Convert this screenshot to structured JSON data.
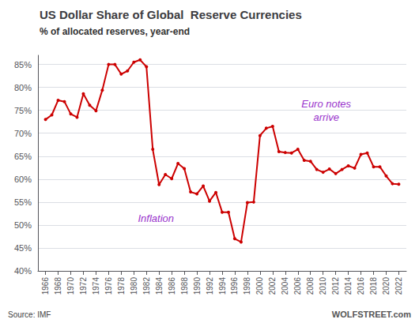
{
  "chart_data": {
    "type": "line",
    "title": "US Dollar Share of Global  Reserve Currencies",
    "subtitle": "% of allocated reserves, year-end",
    "source": "Source: IMF",
    "watermark": "WOLFSTREET.com",
    "color": "#CC0000",
    "marker": "circle",
    "grid": true,
    "x": [
      1966,
      1967,
      1968,
      1969,
      1970,
      1971,
      1972,
      1973,
      1974,
      1975,
      1976,
      1977,
      1978,
      1979,
      1980,
      1981,
      1982,
      1983,
      1984,
      1985,
      1986,
      1987,
      1988,
      1989,
      1990,
      1991,
      1992,
      1993,
      1994,
      1995,
      1996,
      1997,
      1998,
      1999,
      2000,
      2001,
      2002,
      2003,
      2004,
      2005,
      2006,
      2007,
      2008,
      2009,
      2010,
      2011,
      2012,
      2013,
      2014,
      2015,
      2016,
      2017,
      2018,
      2019,
      2020,
      2021,
      2022
    ],
    "values": [
      73.0,
      74.0,
      77.2,
      76.9,
      74.2,
      73.5,
      78.6,
      76.1,
      74.9,
      79.4,
      85.0,
      85.0,
      82.9,
      83.6,
      85.5,
      86.0,
      84.5,
      66.5,
      58.8,
      61.0,
      60.1,
      63.4,
      62.3,
      57.2,
      56.8,
      58.5,
      55.2,
      57.1,
      52.8,
      52.8,
      47.0,
      46.3,
      54.9,
      55.0,
      69.5,
      71.1,
      71.5,
      66.0,
      65.8,
      65.7,
      66.5,
      64.1,
      63.9,
      62.1,
      61.5,
      62.2,
      61.2,
      62.1,
      62.9,
      62.4,
      65.4,
      65.7,
      62.7,
      62.7,
      60.7,
      59.0,
      58.9
    ],
    "xlim": [
      1964.8,
      2023.2
    ],
    "xticks": [
      1966,
      1968,
      1970,
      1972,
      1974,
      1976,
      1978,
      1980,
      1982,
      1984,
      1986,
      1988,
      1990,
      1992,
      1994,
      1996,
      1998,
      2000,
      2002,
      2004,
      2006,
      2008,
      2010,
      2012,
      2014,
      2016,
      2018,
      2020,
      2022
    ],
    "ylim": [
      40,
      87
    ],
    "yticks": [
      {
        "value": 40,
        "label": "40%"
      },
      {
        "value": 45,
        "label": "45%"
      },
      {
        "value": 50,
        "label": "50%"
      },
      {
        "value": 55,
        "label": "55%"
      },
      {
        "value": 60,
        "label": "60%"
      },
      {
        "value": 65,
        "label": "65%"
      },
      {
        "value": 70,
        "label": "70%"
      },
      {
        "value": 75,
        "label": "75%"
      },
      {
        "value": 80,
        "label": "80%"
      },
      {
        "value": 85,
        "label": "85%"
      }
    ],
    "annotations": [
      {
        "text": "Inflation",
        "x": 1983.5,
        "y": 51.5,
        "color": "#9933CC"
      },
      {
        "text": "Euro notes\narrive",
        "x": 2010.5,
        "y": 75.0,
        "color": "#9933CC"
      }
    ]
  }
}
